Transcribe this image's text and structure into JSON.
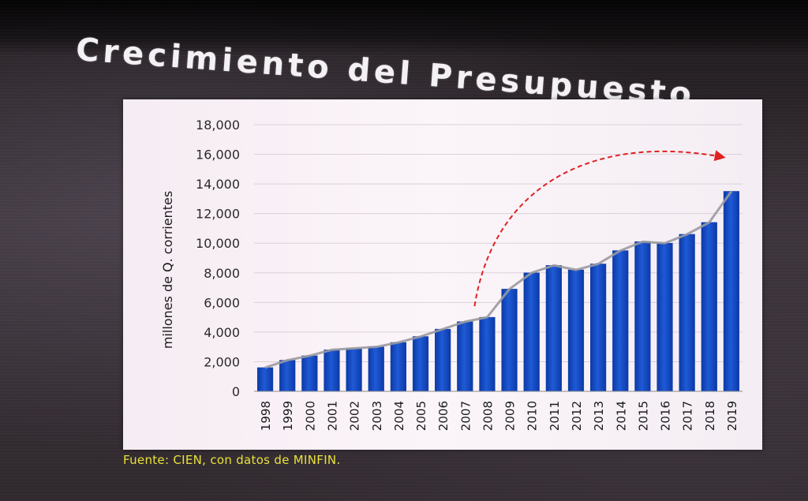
{
  "slide": {
    "title": "Crecimiento del Presupuesto",
    "source": "Fuente: CIEN, con datos de MINFIN."
  },
  "colors": {
    "bar": "#1f5ad6",
    "bar_edge": "#0c3aa8",
    "trend_line": "#9a9aa0",
    "arrow": "#e02020",
    "title": "#f4f1f4",
    "source": "#e9e23a"
  },
  "chart_data": {
    "type": "bar",
    "title": "",
    "xlabel": "",
    "ylabel": "millones de Q. corrientes",
    "ylim": [
      0,
      18000
    ],
    "y_ticks": [
      0,
      2000,
      4000,
      6000,
      8000,
      10000,
      12000,
      14000,
      16000,
      18000
    ],
    "y_tick_labels": [
      "0",
      "2,000",
      "4,000",
      "6,000",
      "8,000",
      "10,000",
      "12,000",
      "14,000",
      "16,000",
      "18,000"
    ],
    "categories": [
      "1998",
      "1999",
      "2000",
      "2001",
      "2002",
      "2003",
      "2004",
      "2005",
      "2006",
      "2007",
      "2008",
      "2009",
      "2010",
      "2011",
      "2012",
      "2013",
      "2014",
      "2015",
      "2016",
      "2017",
      "2018",
      "2019"
    ],
    "values": [
      1600,
      2100,
      2400,
      2800,
      2900,
      3000,
      3300,
      3700,
      4200,
      4700,
      5000,
      6900,
      8000,
      8500,
      8200,
      8600,
      9500,
      10100,
      10000,
      10600,
      11400,
      13500
    ],
    "trend_line": true,
    "annotation": "growth-arrow-2008-2019",
    "grid": true,
    "legend": "none"
  }
}
